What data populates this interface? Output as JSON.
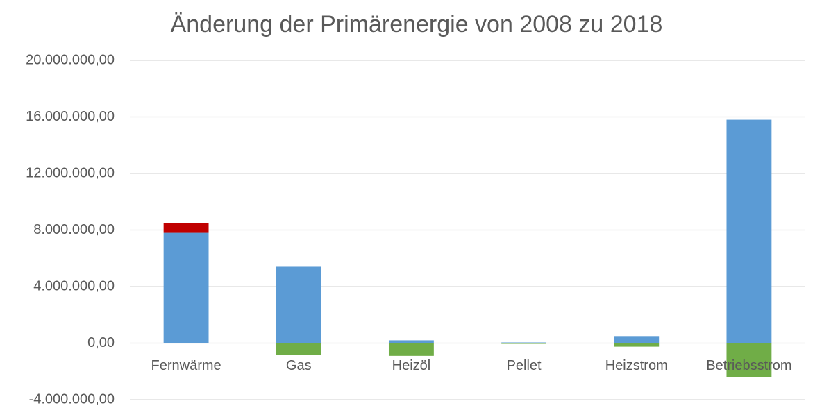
{
  "chart_data": {
    "type": "stacked_bar",
    "title": "Änderung der Primärenergie von 2008 zu 2018",
    "categories": [
      "Fernwärme",
      "Gas",
      "Heizöl",
      "Pellet",
      "Heizstrom",
      "Betriebsstrom"
    ],
    "series": [
      {
        "color": "#5b9bd5",
        "values": [
          7800000,
          5400000,
          200000,
          50000,
          500000,
          15800000
        ]
      },
      {
        "color": "#c00000",
        "values": [
          700000,
          0,
          0,
          0,
          0,
          0
        ]
      },
      {
        "color": "#70ad47",
        "values": [
          0,
          -850000,
          -900000,
          -50000,
          -250000,
          -2400000
        ]
      }
    ],
    "ylim": [
      -4000000,
      20000000
    ],
    "yticks": [
      {
        "value": -4000000,
        "label": "-4.000.000,00"
      },
      {
        "value": 0,
        "label": "0,00"
      },
      {
        "value": 4000000,
        "label": "4.000.000,00"
      },
      {
        "value": 8000000,
        "label": "8.000.000,00"
      },
      {
        "value": 12000000,
        "label": "12.000.000,00"
      },
      {
        "value": 16000000,
        "label": "16.000.000,00"
      },
      {
        "value": 20000000,
        "label": "20.000.000,00"
      }
    ],
    "grid": true
  }
}
